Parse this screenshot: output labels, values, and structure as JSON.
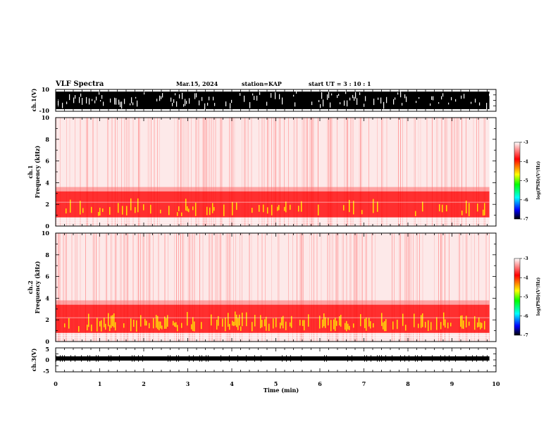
{
  "header": {
    "title": "VLF Spectra",
    "date": "Mar.15, 2024",
    "station": "station=KAP",
    "start": "start  UT =   3 : 10 : 1"
  },
  "chart_data": [
    {
      "type": "line",
      "name": "ch1-waveform",
      "ylabel": "ch.1(V)",
      "ylim": [
        -10,
        10
      ],
      "yticks": [
        "10",
        "-10"
      ],
      "xlim": [
        0,
        10
      ],
      "data_end_min": 9.85
    },
    {
      "type": "heatmap",
      "name": "ch1-spectrogram",
      "ylabel": "ch.1",
      "ylabel2": "Frequency  (kHz)",
      "ylim": [
        0,
        10
      ],
      "yticks": [
        "0",
        "2",
        "4",
        "6",
        "8",
        "10"
      ],
      "xlim": [
        0,
        10
      ],
      "data_end_min": 9.85,
      "dense_band_khz": [
        0.8,
        3.2
      ],
      "colorbar": {
        "label": "log(PSD)(V²/Hz)",
        "range": [
          -7,
          -3
        ],
        "ticks": [
          "-3",
          "-4",
          "-5",
          "-6",
          "-7"
        ]
      }
    },
    {
      "type": "heatmap",
      "name": "ch2-spectrogram",
      "ylabel": "ch.2",
      "ylabel2": "Frequency  (kHz)",
      "ylim": [
        0,
        10
      ],
      "yticks": [
        "0",
        "2",
        "4",
        "6",
        "8",
        "10"
      ],
      "xlim": [
        0,
        10
      ],
      "data_end_min": 9.85,
      "dense_band_khz": [
        0.8,
        3.4
      ],
      "colorbar": {
        "label": "log(PSD)(V²/Hz)",
        "range": [
          -7,
          -3
        ],
        "ticks": [
          "-3",
          "-4",
          "-5",
          "-6",
          "-7"
        ]
      }
    },
    {
      "type": "line",
      "name": "ch3-waveform",
      "ylabel": "ch.3(V)",
      "ylim": [
        -5,
        5
      ],
      "yticks": [
        "5",
        "0",
        "-5"
      ],
      "xlim": [
        0,
        10
      ],
      "level_v": 0,
      "data_end_min": 9.85
    }
  ],
  "xaxis": {
    "label": "Time  (min)",
    "ticks": [
      "0",
      "1",
      "2",
      "3",
      "4",
      "5",
      "6",
      "7",
      "8",
      "9",
      "10"
    ]
  },
  "colors": {
    "ink": "#000000",
    "spec_low": "#ff6a6a",
    "spec_mid": "#ff0000",
    "spec_high": "#ffff00",
    "colorbar": [
      "#ffffff",
      "#ff0000",
      "#ffff00",
      "#00ff00",
      "#00ffff",
      "#0000ff",
      "#000000"
    ]
  }
}
